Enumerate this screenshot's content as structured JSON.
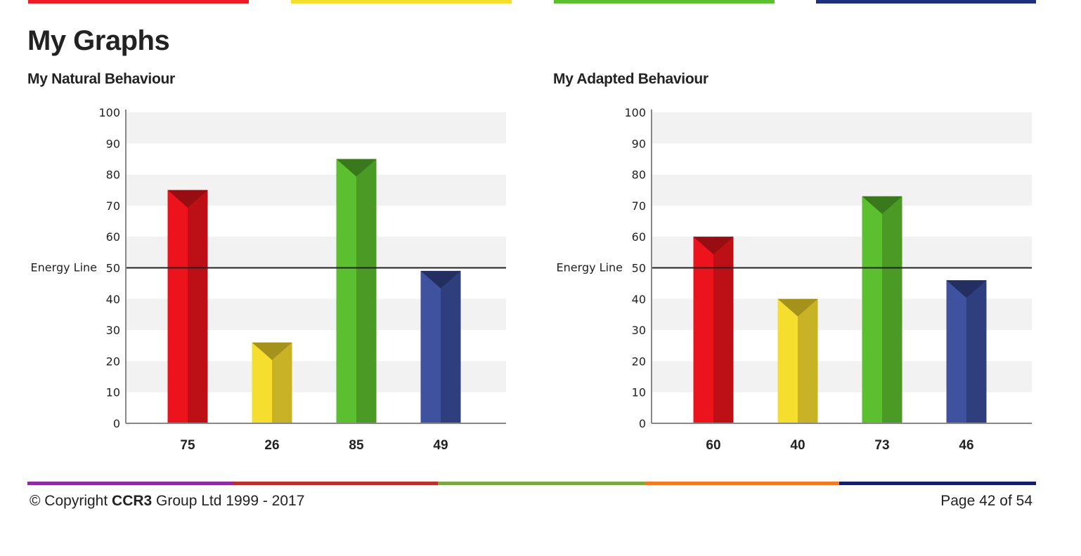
{
  "colors": {
    "top_bars": [
      "#ee1c25",
      "#f5df2e",
      "#5bbf2f",
      "#1e2f7d"
    ],
    "bottom_bars": [
      "#8e2aa3",
      "#b8312f",
      "#7ca843",
      "#f07a24",
      "#141f6a"
    ],
    "bar_series": [
      {
        "front": "#ec131c",
        "side": "#bc1016",
        "cap": "#970d12"
      },
      {
        "front": "#f5de2e",
        "side": "#c8b326",
        "cap": "#a4921c"
      },
      {
        "front": "#5bbf2f",
        "side": "#4a9a25",
        "cap": "#3a781c"
      },
      {
        "front": "#3e52a0",
        "side": "#2f3f7d",
        "cap": "#232f60"
      }
    ],
    "band": "#f2f2f2",
    "energy_line": "#222222",
    "axis": "#888888"
  },
  "page": {
    "title": "My Graphs"
  },
  "chart_data": [
    {
      "type": "bar",
      "title": "My Natural Behaviour",
      "values": [
        75,
        26,
        85,
        49
      ],
      "categories": [
        "75",
        "26",
        "85",
        "49"
      ],
      "ylim": [
        0,
        100
      ],
      "yticks": [
        0,
        10,
        20,
        30,
        40,
        50,
        60,
        70,
        80,
        90,
        100
      ],
      "reference_line": {
        "label": "Energy Line",
        "value": 50
      },
      "grid": "alternating bands"
    },
    {
      "type": "bar",
      "title": "My Adapted Behaviour",
      "values": [
        60,
        40,
        73,
        46
      ],
      "categories": [
        "60",
        "40",
        "73",
        "46"
      ],
      "ylim": [
        0,
        100
      ],
      "yticks": [
        0,
        10,
        20,
        30,
        40,
        50,
        60,
        70,
        80,
        90,
        100
      ],
      "reference_line": {
        "label": "Energy Line",
        "value": 50
      },
      "grid": "alternating bands"
    }
  ],
  "footer": {
    "copyright_prefix": "© Copyright ",
    "copyright_brand": "CCR3",
    "copyright_suffix": " Group Ltd 1999 - 2017",
    "page_label": "Page 42 of 54"
  }
}
